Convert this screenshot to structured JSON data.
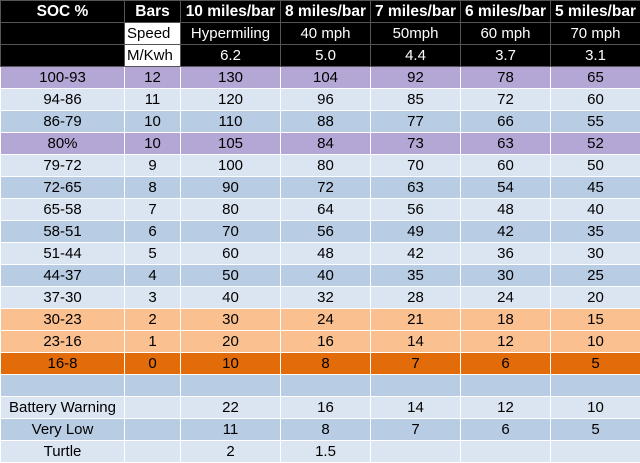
{
  "headers": [
    "SOC %",
    "Bars",
    "10 miles/bar",
    "8 miles/bar",
    "7 miles/bar",
    "6 miles/bar",
    "5 miles/bar"
  ],
  "speed_row": [
    "",
    "Speed",
    "Hypermiling",
    "40 mph",
    "50mph",
    "60 mph",
    "70 mph"
  ],
  "mkwh_row": [
    "",
    "M/Kwh",
    "6.2",
    "5.0",
    "4.4",
    "3.7",
    "3.1"
  ],
  "rows": [
    {
      "style": "purple",
      "cells": [
        "100-93",
        "12",
        "130",
        "104",
        "92",
        "78",
        "65"
      ]
    },
    {
      "style": "light",
      "cells": [
        "94-86",
        "11",
        "120",
        "96",
        "85",
        "72",
        "60"
      ]
    },
    {
      "style": "blue",
      "cells": [
        "86-79",
        "10",
        "110",
        "88",
        "77",
        "66",
        "55"
      ]
    },
    {
      "style": "purple",
      "cells": [
        "80%",
        "10",
        "105",
        "84",
        "73",
        "63",
        "52"
      ]
    },
    {
      "style": "light",
      "cells": [
        "79-72",
        "9",
        "100",
        "80",
        "70",
        "60",
        "50"
      ]
    },
    {
      "style": "blue",
      "cells": [
        "72-65",
        "8",
        "90",
        "72",
        "63",
        "54",
        "45"
      ]
    },
    {
      "style": "light",
      "cells": [
        "65-58",
        "7",
        "80",
        "64",
        "56",
        "48",
        "40"
      ]
    },
    {
      "style": "blue",
      "cells": [
        "58-51",
        "6",
        "70",
        "56",
        "49",
        "42",
        "35"
      ]
    },
    {
      "style": "light",
      "cells": [
        "51-44",
        "5",
        "60",
        "48",
        "42",
        "36",
        "30"
      ]
    },
    {
      "style": "blue",
      "cells": [
        "44-37",
        "4",
        "50",
        "40",
        "35",
        "30",
        "25"
      ]
    },
    {
      "style": "light",
      "cells": [
        "37-30",
        "3",
        "40",
        "32",
        "28",
        "24",
        "20"
      ]
    },
    {
      "style": "peach",
      "cells": [
        "30-23",
        "2",
        "30",
        "24",
        "21",
        "18",
        "15"
      ]
    },
    {
      "style": "peach",
      "cells": [
        "23-16",
        "1",
        "20",
        "16",
        "14",
        "12",
        "10"
      ]
    },
    {
      "style": "orange",
      "cells": [
        "16-8",
        "0",
        "10",
        "8",
        "7",
        "6",
        "5"
      ]
    },
    {
      "style": "blank",
      "cells": [
        "",
        "",
        "",
        "",
        "",
        "",
        ""
      ]
    },
    {
      "style": "bottom-light",
      "cells": [
        "Battery Warning",
        "",
        "22",
        "16",
        "14",
        "12",
        "10"
      ]
    },
    {
      "style": "bottom-blue",
      "cells": [
        "Very Low",
        "",
        "11",
        "8",
        "7",
        "6",
        "5"
      ]
    },
    {
      "style": "bottom-light",
      "cells": [
        "Turtle",
        "",
        "2",
        "1.5",
        "",
        "",
        ""
      ]
    }
  ],
  "colors": {
    "header_bg": "#000000",
    "purple": "#b4a7d6",
    "light": "#dbe5f1",
    "blue": "#b8cce4",
    "peach": "#fac090",
    "orange": "#e26b0a"
  }
}
